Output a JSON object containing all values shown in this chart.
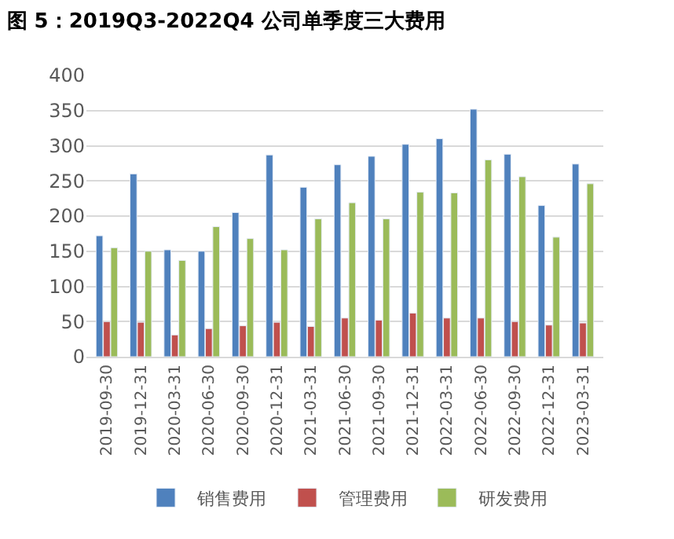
{
  "chart_data": {
    "type": "bar",
    "title": "图 5：2019Q3-2022Q4 公司单季度三大费用",
    "categories": [
      "2019-09-30",
      "2019-12-31",
      "2020-03-31",
      "2020-06-30",
      "2020-09-30",
      "2020-12-31",
      "2021-03-31",
      "2021-06-30",
      "2021-09-30",
      "2021-12-31",
      "2022-03-31",
      "2022-06-30",
      "2022-09-30",
      "2022-12-31",
      "2023-03-31"
    ],
    "series": [
      {
        "name": "销售费用",
        "color": "#4f81bd",
        "values": [
          172,
          260,
          152,
          150,
          205,
          287,
          241,
          273,
          285,
          302,
          310,
          352,
          288,
          215,
          274
        ]
      },
      {
        "name": "管理费用",
        "color": "#c0504d",
        "values": [
          50,
          49,
          31,
          40,
          44,
          49,
          43,
          55,
          52,
          62,
          55,
          55,
          50,
          45,
          48
        ]
      },
      {
        "name": "研发费用",
        "color": "#9bbb59",
        "values": [
          155,
          150,
          137,
          185,
          168,
          152,
          196,
          219,
          196,
          234,
          233,
          280,
          256,
          170,
          246
        ]
      }
    ],
    "ylim": [
      0,
      400
    ],
    "yticks": [
      0,
      50,
      100,
      150,
      200,
      250,
      300,
      350,
      400
    ],
    "grid": "y",
    "legend": "bottom"
  }
}
